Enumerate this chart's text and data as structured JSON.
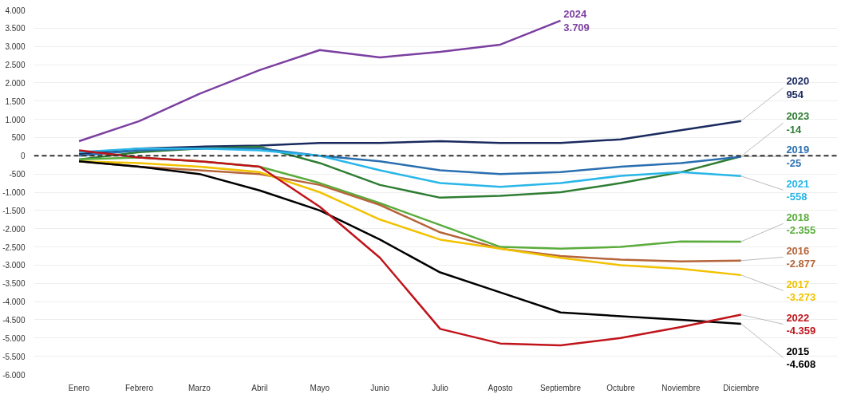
{
  "chart_data": {
    "type": "line",
    "categories": [
      "Enero",
      "Febrero",
      "Marzo",
      "Abril",
      "Mayo",
      "Junio",
      "Julio",
      "Agosto",
      "Septiembre",
      "Octubre",
      "Noviembre",
      "Diciembre"
    ],
    "ylim": [
      -6000,
      4000
    ],
    "yticks": [
      {
        "value": 4000,
        "label": "4.000"
      },
      {
        "value": 3500,
        "label": "3.500"
      },
      {
        "value": 3000,
        "label": "3.000"
      },
      {
        "value": 2500,
        "label": "2.500"
      },
      {
        "value": 2000,
        "label": "2.000"
      },
      {
        "value": 1500,
        "label": "1.500"
      },
      {
        "value": 1000,
        "label": "1.000"
      },
      500,
      0,
      -500,
      {
        "value": -1000,
        "label": "-1.000"
      },
      {
        "value": -1500,
        "label": "-1.500"
      },
      {
        "value": -2000,
        "label": "-2.000"
      },
      {
        "value": -2500,
        "label": "-2.500"
      },
      {
        "value": -3000,
        "label": "-3.000"
      },
      {
        "value": -3500,
        "label": "-3.500"
      },
      {
        "value": -4000,
        "label": "-4.000"
      },
      {
        "value": -4500,
        "label": "-4.500"
      },
      {
        "value": -5000,
        "label": "-5.000"
      },
      {
        "value": -5500,
        "label": "-5.500"
      },
      {
        "value": -6000,
        "label": "-6.000"
      }
    ],
    "grid": "y",
    "marker": "none",
    "line_style": "solid",
    "ref_lines": [
      {
        "axis": "y",
        "value": 0,
        "label": null,
        "color": "#333333",
        "line_style": "dashed"
      }
    ],
    "series": [
      {
        "name": "2024",
        "color": "#7b3fa0",
        "values": [
          400,
          950,
          1700,
          2350,
          2900,
          2700,
          2850,
          3050,
          3709,
          null,
          null,
          null
        ],
        "value_labels": [
          null,
          null,
          null,
          null,
          null,
          null,
          null,
          null,
          "3.709",
          null,
          null,
          null
        ]
      },
      {
        "name": "2020",
        "color": "#1a2a5e",
        "values": [
          50,
          200,
          250,
          280,
          350,
          350,
          400,
          350,
          350,
          450,
          700,
          954
        ],
        "value_labels": [
          null,
          null,
          null,
          null,
          null,
          null,
          null,
          null,
          null,
          null,
          null,
          "954"
        ]
      },
      {
        "name": "2023",
        "color": "#2e7d32",
        "values": [
          -100,
          100,
          200,
          250,
          -200,
          -800,
          -1150,
          -1100,
          -1000,
          -750,
          -450,
          -14
        ],
        "value_labels": [
          null,
          null,
          null,
          null,
          null,
          null,
          null,
          null,
          null,
          null,
          null,
          "-14"
        ]
      },
      {
        "name": "2019",
        "color": "#2a6fb0",
        "values": [
          0,
          150,
          200,
          200,
          0,
          -150,
          -400,
          -500,
          -450,
          -300,
          -200,
          -25
        ],
        "value_labels": [
          null,
          null,
          null,
          null,
          null,
          null,
          null,
          null,
          null,
          null,
          null,
          "-25"
        ]
      },
      {
        "name": "2021",
        "color": "#29b6e8",
        "values": [
          100,
          200,
          200,
          150,
          0,
          -400,
          -750,
          -850,
          -750,
          -550,
          -450,
          -558
        ],
        "value_labels": [
          null,
          null,
          null,
          null,
          null,
          null,
          null,
          null,
          null,
          null,
          null,
          "-558"
        ]
      },
      {
        "name": "2018",
        "color": "#5aac3c",
        "values": [
          -100,
          -50,
          -150,
          -300,
          -750,
          -1300,
          -1900,
          -2500,
          -2550,
          -2500,
          -2350,
          -2355
        ],
        "value_labels": [
          null,
          null,
          null,
          null,
          null,
          null,
          null,
          null,
          null,
          null,
          null,
          "-2.355"
        ]
      },
      {
        "name": "2016",
        "color": "#b5653a",
        "values": [
          -150,
          -300,
          -400,
          -500,
          -800,
          -1350,
          -2100,
          -2550,
          -2750,
          -2850,
          -2900,
          -2877
        ],
        "value_labels": [
          null,
          null,
          null,
          null,
          null,
          null,
          null,
          null,
          null,
          null,
          null,
          "-2.877"
        ]
      },
      {
        "name": "2017",
        "color": "#f2c200",
        "values": [
          -150,
          -200,
          -300,
          -450,
          -1000,
          -1750,
          -2300,
          -2550,
          -2800,
          -3000,
          -3100,
          -3273
        ],
        "value_labels": [
          null,
          null,
          null,
          null,
          null,
          null,
          null,
          null,
          null,
          null,
          null,
          "-3.273"
        ]
      },
      {
        "name": "2015",
        "color": "#000000",
        "values": [
          -150,
          -300,
          -500,
          -950,
          -1500,
          -2300,
          -3200,
          -3750,
          -4300,
          -4400,
          -4500,
          -4608
        ],
        "value_labels": [
          null,
          null,
          null,
          null,
          null,
          null,
          null,
          null,
          null,
          null,
          null,
          "-4.608"
        ]
      },
      {
        "name": "2022",
        "color": "#c0141b",
        "values": [
          150,
          -50,
          -150,
          -300,
          -1400,
          -2800,
          -4750,
          -5150,
          -5200,
          -5000,
          -4700,
          -4359
        ],
        "value_labels": [
          null,
          null,
          null,
          null,
          null,
          null,
          null,
          null,
          null,
          null,
          null,
          "-4.359"
        ]
      }
    ]
  }
}
